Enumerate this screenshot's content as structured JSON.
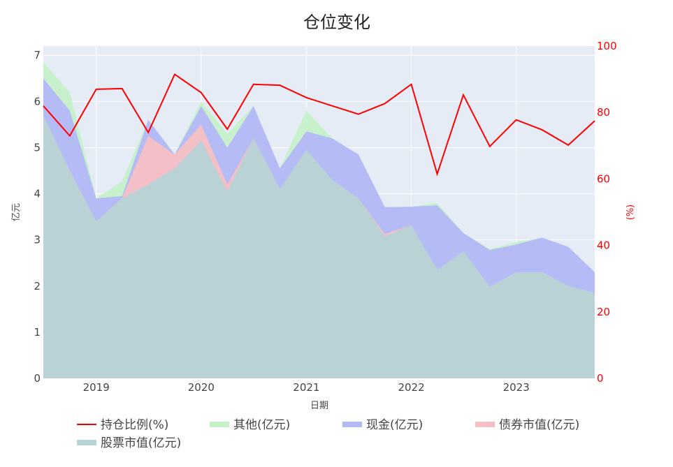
{
  "chart_data": {
    "type": "area",
    "title": "仓位变化",
    "xlabel": "日期",
    "ylabel": "亿元",
    "y2label": "(%)",
    "x": [
      "2018-07-01",
      "2018-10-01",
      "2019-01-01",
      "2019-04-01",
      "2019-07-01",
      "2019-10-01",
      "2020-01-01",
      "2020-04-01",
      "2020-07-01",
      "2020-10-01",
      "2021-01-01",
      "2021-04-01",
      "2021-07-01",
      "2021-10-01",
      "2022-01-01",
      "2022-04-01",
      "2022-07-01",
      "2022-10-01",
      "2023-01-01",
      "2023-04-01",
      "2023-07-01",
      "2023-10-01"
    ],
    "xticks": [
      "2019",
      "2020",
      "2021",
      "2022",
      "2023"
    ],
    "xtick_dates": [
      "2019-01-01",
      "2020-01-01",
      "2021-01-01",
      "2022-01-01",
      "2023-01-01"
    ],
    "xrange": [
      "2018-07-01",
      "2023-10-01"
    ],
    "ylim": [
      0,
      7.2
    ],
    "yticks": [
      0,
      1,
      2,
      3,
      4,
      5,
      6,
      7
    ],
    "y2lim": [
      0,
      100
    ],
    "y2ticks": [
      0,
      20,
      40,
      60,
      80,
      100
    ],
    "series": [
      {
        "name": "股票市值(亿元)",
        "axis": "left",
        "kind": "area",
        "color": "#b6d3d6",
        "values": [
          5.7,
          4.5,
          3.4,
          3.9,
          4.2,
          4.55,
          5.15,
          4.05,
          5.2,
          4.1,
          4.95,
          4.3,
          3.9,
          3.08,
          3.32,
          2.35,
          2.75,
          1.98,
          2.3,
          2.3,
          2.0,
          1.85
        ]
      },
      {
        "name": "债券市值(亿元)",
        "axis": "left",
        "kind": "area",
        "color": "#f5c0c3",
        "values": [
          0.0,
          0.0,
          0.0,
          0.0,
          1.05,
          0.3,
          0.35,
          0.15,
          0.0,
          0.0,
          0.0,
          0.0,
          0.0,
          0.05,
          0.0,
          0.0,
          0.0,
          0.0,
          0.0,
          0.0,
          0.0,
          0.0
        ]
      },
      {
        "name": "现金(亿元)",
        "axis": "left",
        "kind": "area",
        "color": "#b4b8f7",
        "values": [
          0.8,
          1.3,
          0.5,
          0.05,
          0.35,
          0.0,
          0.4,
          0.8,
          0.7,
          0.45,
          0.4,
          0.9,
          0.95,
          0.58,
          0.4,
          1.4,
          0.4,
          0.8,
          0.6,
          0.75,
          0.85,
          0.45
        ]
      },
      {
        "name": "其他(亿元)",
        "axis": "left",
        "kind": "area",
        "color": "#c5f1c9",
        "values": [
          0.35,
          0.4,
          0.0,
          0.32,
          0.0,
          0.0,
          0.1,
          0.3,
          0.0,
          0.0,
          0.45,
          0.0,
          0.0,
          0.0,
          0.0,
          0.05,
          0.0,
          0.02,
          0.05,
          0.0,
          0.0,
          0.0
        ]
      },
      {
        "name": "持仓比例(%)",
        "axis": "right",
        "kind": "line",
        "color": "#ff0000",
        "values": [
          82.0,
          73.0,
          87.0,
          87.2,
          74.0,
          91.5,
          86.0,
          75.0,
          88.5,
          88.2,
          84.5,
          82.0,
          79.5,
          82.7,
          88.5,
          61.5,
          85.3,
          69.8,
          77.8,
          74.8,
          70.2,
          77.5
        ]
      }
    ],
    "legend": {
      "placement": "bottom",
      "items": [
        "持仓比例(%)",
        "其他(亿元)",
        "现金(亿元)",
        "债券市值(亿元)",
        "股票市值(亿元)"
      ]
    },
    "grid": true,
    "plot_background": "#e5ecf6"
  }
}
